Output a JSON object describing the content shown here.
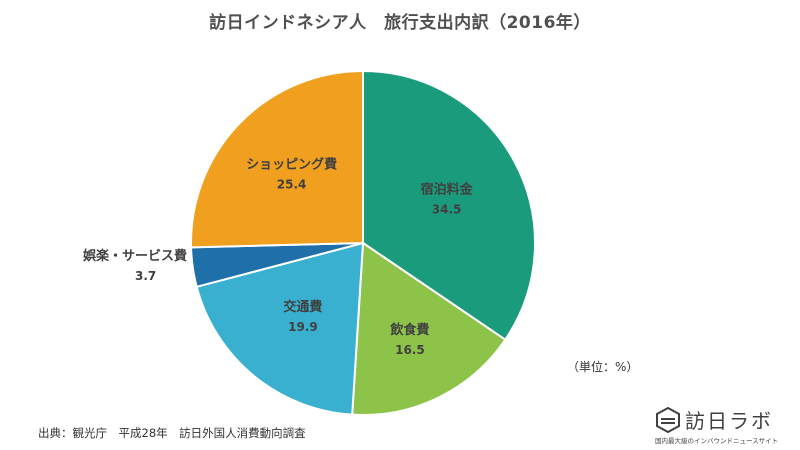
{
  "chart_data": {
    "type": "pie",
    "title": "訪日インドネシア人　旅行支出内訳（2016年）",
    "unit_label": "（単位：%）",
    "slices": [
      {
        "label": "宿泊料金",
        "value": 34.5,
        "color": "#1a9b7c"
      },
      {
        "label": "飲食費",
        "value": 16.5,
        "color": "#8ec34a"
      },
      {
        "label": "交通費",
        "value": 19.9,
        "color": "#3ab0d0"
      },
      {
        "label": "娯楽・サービス費",
        "value": 3.7,
        "color": "#1f6fa8"
      },
      {
        "label": "ショッピング費",
        "value": 25.4,
        "color": "#f0a01e"
      }
    ]
  },
  "source": "出典：観光庁　平成28年　訪日外国人消費動向調査",
  "logo": {
    "main": "訪日ラボ",
    "sub": "国内最大級のインバウンドニュースサイト",
    "icon": "hexagon-logo-icon"
  }
}
